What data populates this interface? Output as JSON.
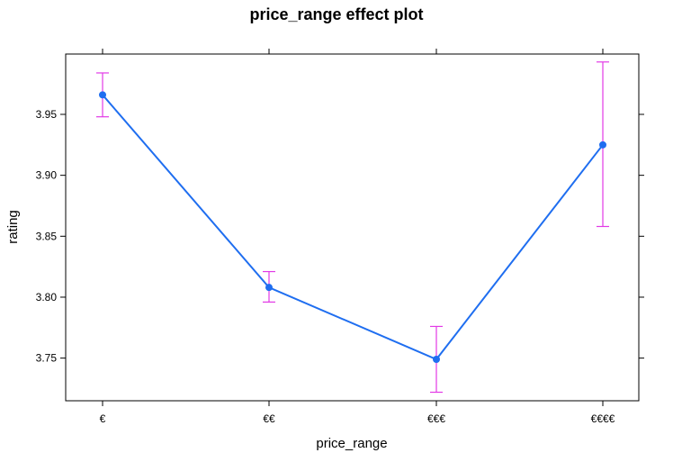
{
  "chart_data": {
    "type": "line",
    "title": "price_range effect plot",
    "xlabel": "price_range",
    "ylabel": "rating",
    "categories": [
      "€",
      "€€",
      "€€€",
      "€€€€"
    ],
    "series": [
      {
        "values": [
          3.966,
          3.808,
          3.749,
          3.925
        ],
        "lower": [
          3.948,
          3.796,
          3.722,
          3.858
        ],
        "upper": [
          3.984,
          3.821,
          3.776,
          3.993
        ]
      }
    ],
    "yticks": [
      3.75,
      3.8,
      3.85,
      3.9,
      3.95
    ],
    "ytick_labels": [
      "3.75",
      "3.80",
      "3.85",
      "3.90",
      "3.95"
    ],
    "ylim": [
      3.715,
      3.9995
    ],
    "grid": false,
    "legend": "none",
    "colors": {
      "line": "#1f6ef0",
      "point": "#1f6ef0",
      "errorbar": "#e23ae6",
      "axis": "#000000"
    }
  }
}
